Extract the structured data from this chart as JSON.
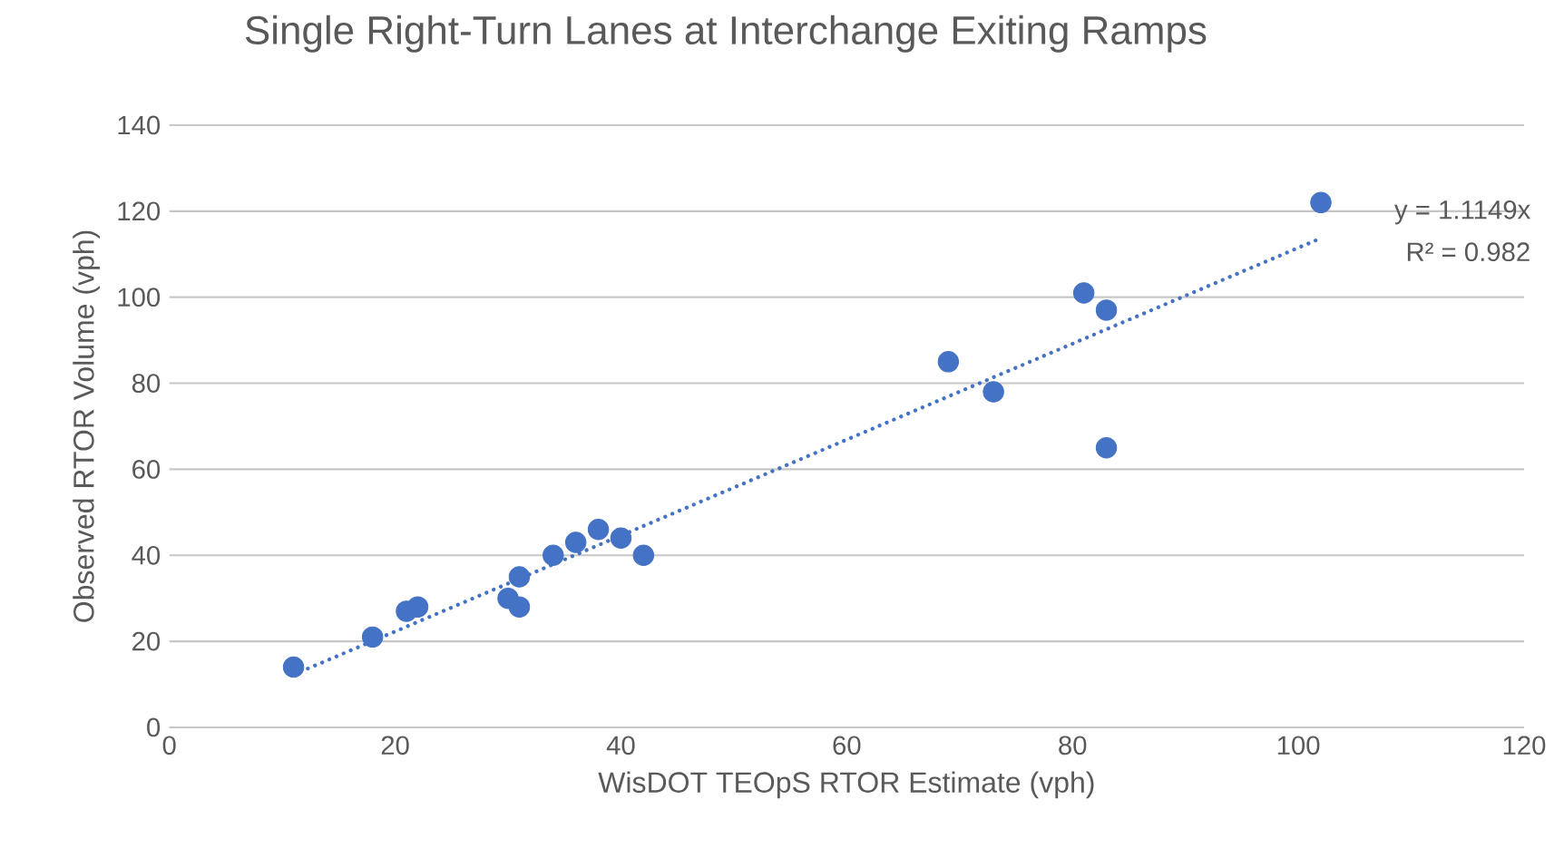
{
  "chart_data": {
    "type": "scatter",
    "title": "Single Right-Turn Lanes at Interchange Exiting Ramps",
    "xlabel": "WisDOT TEOpS RTOR Estimate (vph)",
    "ylabel": "Observed  RTOR Volume (vph)",
    "series": [
      {
        "color": "#4472c4",
        "marker": "circle",
        "x": [
          11,
          18,
          21,
          22,
          30,
          31,
          31,
          34,
          36,
          38,
          40,
          42,
          69,
          73,
          81,
          83,
          83,
          102
        ],
        "values": [
          14,
          21,
          27,
          28,
          30,
          28,
          35,
          40,
          43,
          46,
          44,
          40,
          85,
          78,
          101,
          97,
          65,
          122
        ]
      },
      {
        "type": "line",
        "color": "#4472c4",
        "line_style": "dotted",
        "marker": "none",
        "x": [
          11,
          102
        ],
        "values": [
          12.26,
          113.72
        ]
      }
    ],
    "annotations": [
      "y = 1.1149x",
      "R² = 0.982"
    ],
    "xlim": [
      0,
      120
    ],
    "xticks": [
      0,
      20,
      40,
      60,
      80,
      100,
      120
    ],
    "ylim": [
      0,
      140
    ],
    "yticks": [
      0,
      20,
      40,
      60,
      80,
      100,
      120,
      140
    ],
    "grid": "y"
  }
}
